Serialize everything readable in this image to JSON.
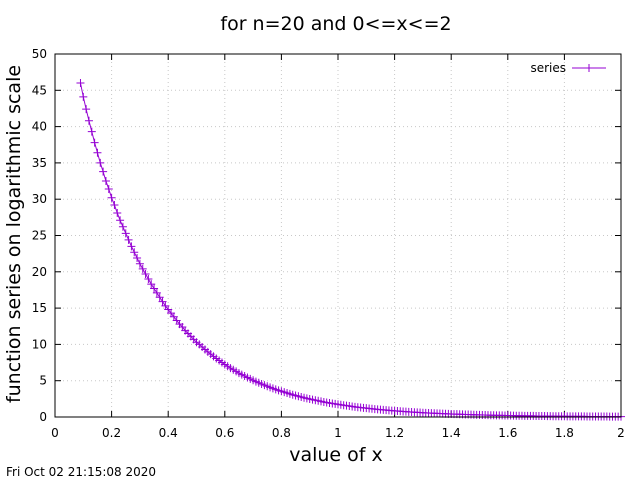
{
  "chart_data": {
    "type": "line",
    "title": "for n=20 and 0<=x<=2",
    "xlabel": "value of x",
    "ylabel": "function series on logarithmic scale",
    "xlim": [
      0,
      2
    ],
    "ylim": [
      0,
      50
    ],
    "x_ticks": [
      "0",
      "0.2",
      "0.4",
      "0.6",
      "0.8",
      "1",
      "1.2",
      "1.4",
      "1.6",
      "1.8",
      "2"
    ],
    "y_ticks": [
      "0",
      "5",
      "10",
      "15",
      "20",
      "25",
      "30",
      "35",
      "40",
      "45",
      "50"
    ],
    "grid": true,
    "legend_position": "top-right",
    "series": [
      {
        "name": "series",
        "color": "#9400d3",
        "marker": "plus",
        "x": [
          0.09,
          0.1,
          0.11,
          0.12,
          0.13,
          0.14,
          0.15,
          0.16,
          0.17,
          0.18,
          0.19,
          0.2,
          0.21,
          0.22,
          0.23,
          0.24,
          0.25,
          0.26,
          0.27,
          0.28,
          0.29,
          0.3,
          0.31,
          0.32,
          0.33,
          0.34,
          0.35,
          0.36,
          0.37,
          0.38,
          0.39,
          0.4,
          0.41,
          0.42,
          0.43,
          0.44,
          0.45,
          0.46,
          0.47,
          0.48,
          0.49,
          0.5,
          0.51,
          0.52,
          0.53,
          0.54,
          0.55,
          0.56,
          0.57,
          0.58,
          0.59,
          0.6,
          0.61,
          0.62,
          0.63,
          0.64,
          0.65,
          0.66,
          0.67,
          0.68,
          0.69,
          0.7,
          0.71,
          0.72,
          0.73,
          0.74,
          0.75,
          0.76,
          0.77,
          0.78,
          0.79,
          0.8,
          0.81,
          0.82,
          0.83,
          0.84,
          0.85,
          0.86,
          0.87,
          0.88,
          0.89,
          0.9,
          0.91,
          0.92,
          0.93,
          0.94,
          0.95,
          0.96,
          0.97,
          0.98,
          0.99,
          1.0,
          1.01,
          1.02,
          1.03,
          1.04,
          1.05,
          1.06,
          1.07,
          1.08,
          1.09,
          1.1,
          1.11,
          1.12,
          1.13,
          1.14,
          1.15,
          1.16,
          1.17,
          1.18,
          1.19,
          1.2,
          1.21,
          1.22,
          1.23,
          1.24,
          1.25,
          1.26,
          1.27,
          1.28,
          1.29,
          1.3,
          1.31,
          1.32,
          1.33,
          1.34,
          1.35,
          1.36,
          1.37,
          1.38,
          1.39,
          1.4,
          1.41,
          1.42,
          1.43,
          1.44,
          1.45,
          1.46,
          1.47,
          1.48,
          1.49,
          1.5,
          1.51,
          1.52,
          1.53,
          1.54,
          1.55,
          1.56,
          1.57,
          1.58,
          1.59,
          1.6,
          1.61,
          1.62,
          1.63,
          1.64,
          1.65,
          1.66,
          1.67,
          1.68,
          1.69,
          1.7,
          1.71,
          1.72,
          1.73,
          1.74,
          1.75,
          1.76,
          1.77,
          1.78,
          1.79,
          1.8,
          1.81,
          1.82,
          1.83,
          1.84,
          1.85,
          1.86,
          1.87,
          1.88,
          1.89,
          1.9,
          1.91,
          1.92,
          1.93,
          1.94,
          1.95,
          1.96,
          1.97,
          1.98,
          1.99,
          2.0
        ],
        "y": [
          46.0,
          44.1,
          42.4,
          40.8,
          39.3,
          37.8,
          36.4,
          35.0,
          33.8,
          32.5,
          31.4,
          30.2,
          29.2,
          28.1,
          27.1,
          26.2,
          25.3,
          24.4,
          23.5,
          22.7,
          21.9,
          21.1,
          20.4,
          19.7,
          19.0,
          18.3,
          17.7,
          17.1,
          16.5,
          15.9,
          15.3,
          14.8,
          14.3,
          13.8,
          13.3,
          12.8,
          12.4,
          11.9,
          11.5,
          11.1,
          10.7,
          10.3,
          10.0,
          9.64,
          9.3,
          8.97,
          8.66,
          8.35,
          8.06,
          7.78,
          7.5,
          7.24,
          6.99,
          6.74,
          6.5,
          6.28,
          6.05,
          5.84,
          5.64,
          5.44,
          5.25,
          5.06,
          4.88,
          4.71,
          4.55,
          4.39,
          4.23,
          4.08,
          3.94,
          3.8,
          3.67,
          3.54,
          3.42,
          3.3,
          3.18,
          3.07,
          2.96,
          2.86,
          2.76,
          2.66,
          2.57,
          2.48,
          2.39,
          2.31,
          2.23,
          2.15,
          2.07,
          2.0,
          1.93,
          1.86,
          1.8,
          1.74,
          1.68,
          1.62,
          1.56,
          1.51,
          1.45,
          1.4,
          1.35,
          1.31,
          1.26,
          1.22,
          1.17,
          1.13,
          1.09,
          1.05,
          1.02,
          0.98,
          0.95,
          0.91,
          0.88,
          0.85,
          0.82,
          0.79,
          0.76,
          0.74,
          0.71,
          0.69,
          0.66,
          0.64,
          0.62,
          0.59,
          0.57,
          0.55,
          0.53,
          0.51,
          0.5,
          0.48,
          0.46,
          0.45,
          0.43,
          0.42,
          0.4,
          0.39,
          0.37,
          0.36,
          0.35,
          0.34,
          0.32,
          0.31,
          0.3,
          0.29,
          0.28,
          0.27,
          0.26,
          0.25,
          0.24,
          0.23,
          0.23,
          0.22,
          0.21,
          0.2,
          0.2,
          0.19,
          0.18,
          0.18,
          0.17,
          0.16,
          0.16,
          0.15,
          0.15,
          0.14,
          0.14,
          0.13,
          0.13,
          0.12,
          0.12,
          0.11,
          0.11,
          0.11,
          0.1,
          0.1,
          0.09,
          0.09,
          0.09,
          0.08,
          0.08,
          0.08,
          0.08,
          0.07,
          0.07,
          0.07,
          0.06,
          0.06,
          0.06,
          0.06,
          0.06,
          0.05,
          0.05,
          0.05,
          0.05,
          0.05
        ]
      }
    ]
  },
  "footer": {
    "timestamp": "Fri Oct 02 21:15:08 2020"
  }
}
